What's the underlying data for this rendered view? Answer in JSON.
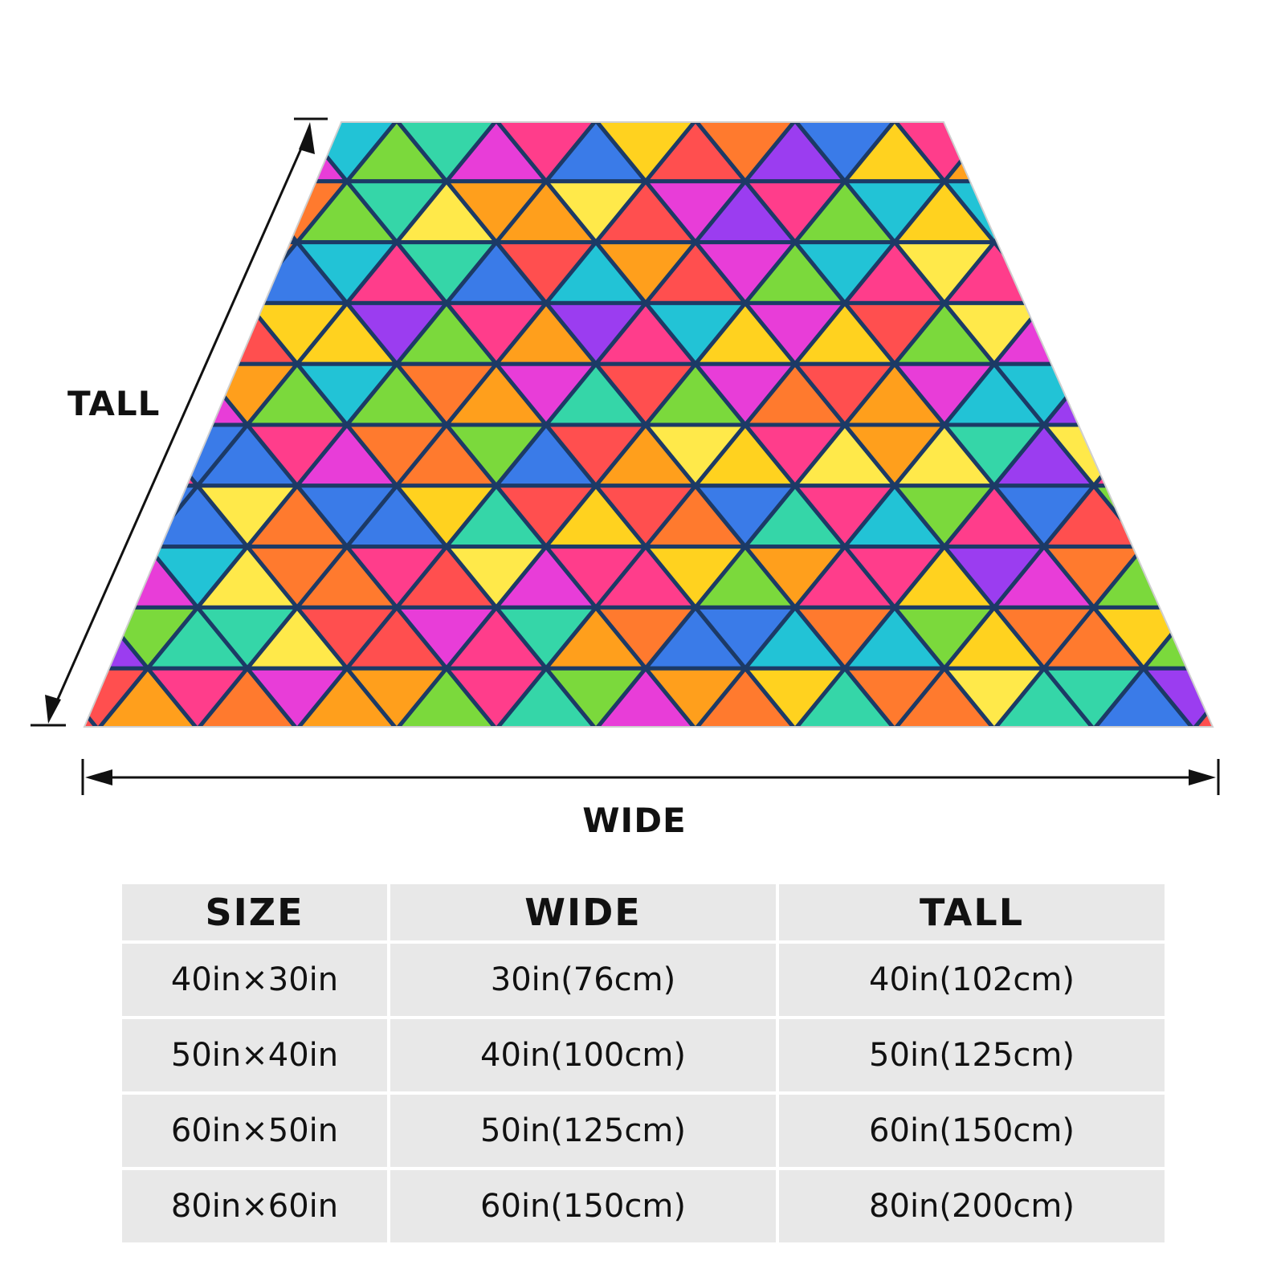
{
  "diagram": {
    "tall_label": "TALL",
    "wide_label": "WIDE",
    "blanket_colors": [
      "#ff3d8b",
      "#ff7a2e",
      "#ffd21f",
      "#7bd93c",
      "#22c3d6",
      "#3a7be8",
      "#9b3df0",
      "#e83dd8",
      "#ff4f4f",
      "#35d6a8",
      "#ffe94a",
      "#ff9f1c"
    ],
    "grid_line_color": "#1c3a66"
  },
  "size_table": {
    "headers": [
      "SIZE",
      "WIDE",
      "TALL"
    ],
    "rows": [
      [
        "40in×30in",
        "30in(76cm)",
        "40in(102cm)"
      ],
      [
        "50in×40in",
        "40in(100cm)",
        "50in(125cm)"
      ],
      [
        "60in×50in",
        "50in(125cm)",
        "60in(150cm)"
      ],
      [
        "80in×60in",
        "60in(150cm)",
        "80in(200cm)"
      ]
    ]
  }
}
